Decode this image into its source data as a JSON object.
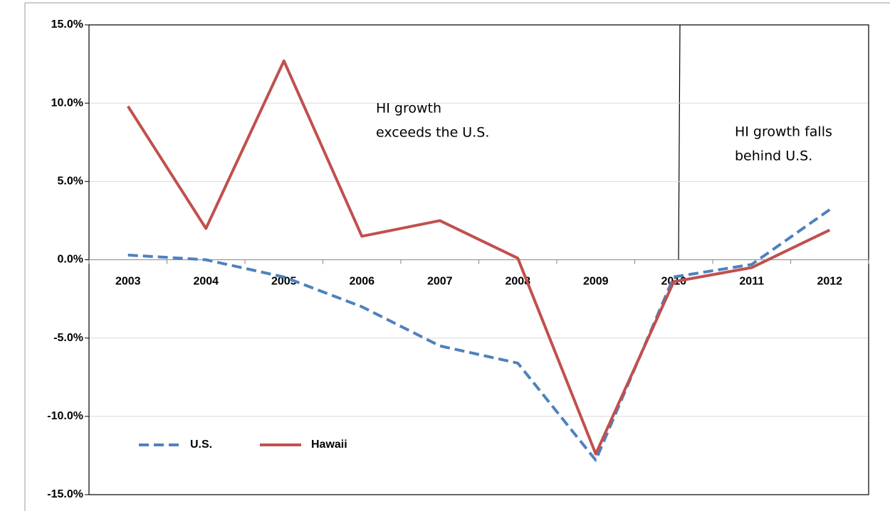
{
  "chart_data": {
    "type": "line",
    "categories": [
      "2003",
      "2004",
      "2005",
      "2006",
      "2007",
      "2008",
      "2009",
      "2010",
      "2011",
      "2012"
    ],
    "series": [
      {
        "name": "U.S.",
        "color": "#4f81bd",
        "dash": true,
        "values": [
          0.3,
          0.0,
          -1.1,
          -3.0,
          -5.5,
          -6.6,
          -12.8,
          -1.1,
          -0.3,
          3.2
        ]
      },
      {
        "name": "Hawaii",
        "color": "#c0504d",
        "dash": false,
        "values": [
          9.8,
          2.0,
          12.7,
          1.5,
          2.5,
          0.1,
          -12.4,
          -1.4,
          -0.5,
          1.9
        ]
      }
    ],
    "ylim": [
      -15,
      15
    ],
    "yticks": [
      {
        "value": -15,
        "label": "-15.0%"
      },
      {
        "value": -10,
        "label": "-10.0%"
      },
      {
        "value": -5,
        "label": "-5.0%"
      },
      {
        "value": 0,
        "label": "0.0%"
      },
      {
        "value": 5,
        "label": "5.0%"
      },
      {
        "value": 10,
        "label": "10.0%"
      },
      {
        "value": 15,
        "label": "15.0%"
      }
    ],
    "grid": true,
    "legend": "lower left",
    "annotations": [
      [
        "HI growth",
        "exceeds the U.S."
      ],
      [
        "HI growth falls",
        "behind U.S."
      ]
    ]
  }
}
